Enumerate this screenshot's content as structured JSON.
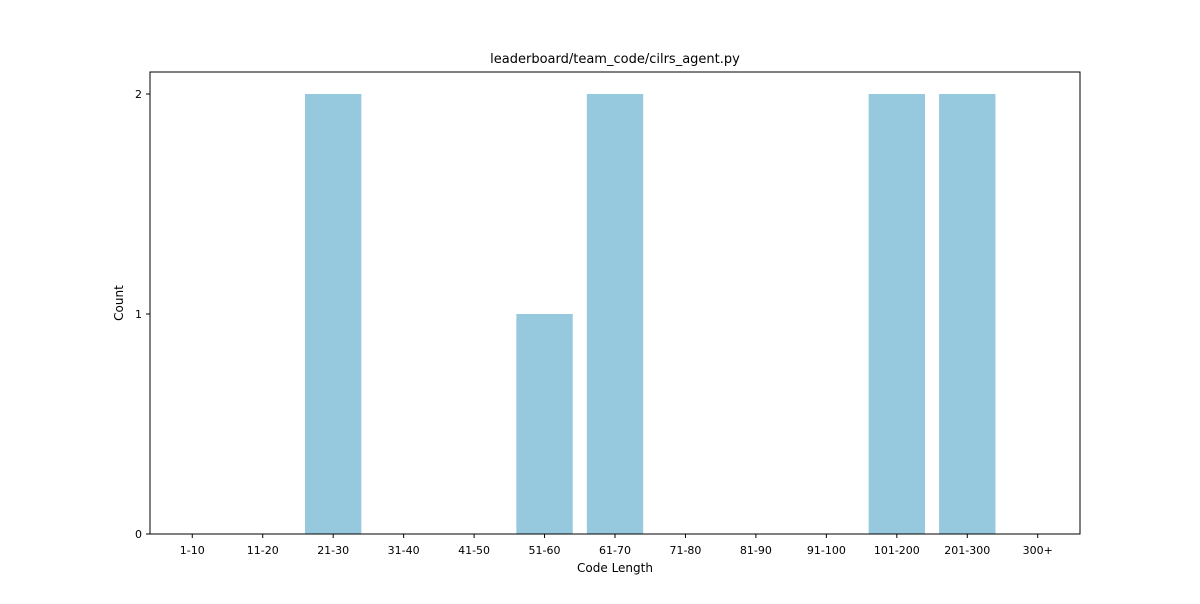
{
  "chart_data": {
    "type": "bar",
    "title": "leaderboard/team_code/cilrs_agent.py",
    "xlabel": "Code Length",
    "ylabel": "Count",
    "categories": [
      "1-10",
      "11-20",
      "21-30",
      "31-40",
      "41-50",
      "51-60",
      "61-70",
      "71-80",
      "81-90",
      "91-100",
      "101-200",
      "201-300",
      "300+"
    ],
    "values": [
      0,
      0,
      2,
      0,
      0,
      1,
      2,
      0,
      0,
      0,
      2,
      2,
      0
    ],
    "ylim": [
      0,
      2.1
    ],
    "yticks": [
      0,
      1,
      2
    ],
    "grid": false,
    "bar_color": "#96c9dd",
    "axis_color": "#000000"
  }
}
